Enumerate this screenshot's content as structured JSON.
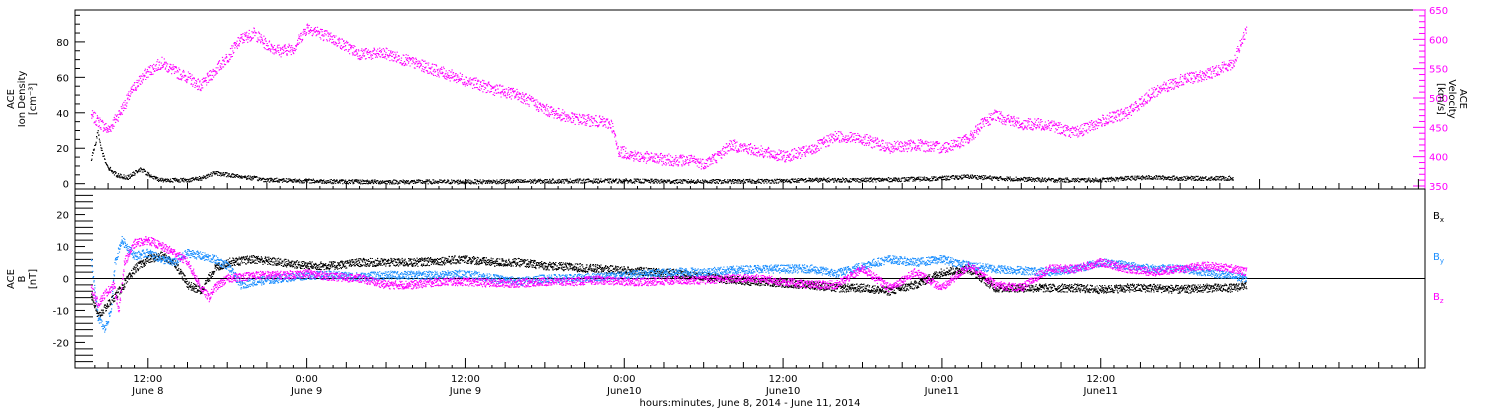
{
  "chart_data": [
    {
      "type": "scatter",
      "panel": "top",
      "ylabel_lines": [
        "ACE",
        "Ion Density",
        "[cm⁻³]"
      ],
      "y2label_lines": [
        "ACE",
        "Velocity",
        "[km/s]"
      ],
      "ylim": [
        -3,
        98
      ],
      "yticks": [
        0,
        20,
        40,
        60,
        80
      ],
      "y2lim": [
        350,
        650
      ],
      "y2ticks": [
        350,
        400,
        450,
        500,
        550,
        600,
        650
      ],
      "colors": {
        "density": "#000000",
        "velocity": "#ff00ff"
      },
      "series": [
        {
          "axis": "left",
          "color": "#000000",
          "points": [
            [
              -4.3,
              14
            ],
            [
              -4,
              22
            ],
            [
              -3.8,
              30
            ],
            [
              -3.5,
              18
            ],
            [
              -3.2,
              12
            ],
            [
              -3,
              9
            ],
            [
              -2.7,
              7
            ],
            [
              -2.4,
              5
            ],
            [
              -2,
              4
            ],
            [
              -1.5,
              3.5
            ],
            [
              -1,
              6
            ],
            [
              -0.7,
              8
            ],
            [
              -0.3,
              7
            ],
            [
              0,
              5
            ],
            [
              0.5,
              3
            ],
            [
              1,
              2
            ],
            [
              2,
              2
            ],
            [
              3,
              2
            ],
            [
              4,
              3
            ],
            [
              5,
              6
            ],
            [
              6,
              5
            ],
            [
              7,
              4
            ],
            [
              8,
              3
            ],
            [
              9,
              2
            ],
            [
              10,
              2
            ],
            [
              12,
              1.5
            ],
            [
              14,
              1.2
            ],
            [
              16,
              1
            ],
            [
              18,
              1
            ],
            [
              20,
              1
            ],
            [
              24,
              1
            ],
            [
              28,
              1.2
            ],
            [
              32,
              1.5
            ],
            [
              36,
              1.5
            ],
            [
              40,
              1.2
            ],
            [
              44,
              1.2
            ],
            [
              48,
              1.5
            ],
            [
              50,
              2
            ],
            [
              54,
              2
            ],
            [
              58,
              2.5
            ],
            [
              60,
              3
            ],
            [
              62,
              4
            ],
            [
              64,
              3
            ],
            [
              66,
              2.5
            ],
            [
              68,
              2
            ],
            [
              70,
              2
            ],
            [
              72,
              2
            ],
            [
              74,
              3
            ],
            [
              76,
              3.5
            ],
            [
              78,
              3
            ],
            [
              80,
              3
            ],
            [
              82,
              3
            ]
          ]
        },
        {
          "axis": "right",
          "color": "#ff00ff",
          "points": [
            [
              -4.3,
              470
            ],
            [
              -3,
              445
            ],
            [
              -2,
              480
            ],
            [
              -1,
              520
            ],
            [
              0,
              545
            ],
            [
              1,
              560
            ],
            [
              2,
              545
            ],
            [
              3,
              535
            ],
            [
              4,
              520
            ],
            [
              5,
              545
            ],
            [
              6,
              570
            ],
            [
              7,
              600
            ],
            [
              8,
              610
            ],
            [
              9,
              590
            ],
            [
              10,
              580
            ],
            [
              11,
              585
            ],
            [
              12,
              620
            ],
            [
              13,
              610
            ],
            [
              14,
              600
            ],
            [
              16,
              575
            ],
            [
              18,
              575
            ],
            [
              20,
              560
            ],
            [
              22,
              545
            ],
            [
              24,
              530
            ],
            [
              26,
              515
            ],
            [
              28,
              505
            ],
            [
              30,
              480
            ],
            [
              32,
              465
            ],
            [
              34,
              460
            ],
            [
              35,
              455
            ],
            [
              35.5,
              410
            ],
            [
              37,
              400
            ],
            [
              39,
              395
            ],
            [
              41,
              393
            ],
            [
              42,
              388
            ],
            [
              43,
              400
            ],
            [
              44,
              420
            ],
            [
              46,
              410
            ],
            [
              48,
              400
            ],
            [
              50,
              410
            ],
            [
              52,
              435
            ],
            [
              54,
              430
            ],
            [
              56,
              415
            ],
            [
              58,
              420
            ],
            [
              60,
              415
            ],
            [
              62,
              430
            ],
            [
              63,
              455
            ],
            [
              64,
              470
            ],
            [
              66,
              455
            ],
            [
              68,
              455
            ],
            [
              70,
              440
            ],
            [
              72,
              460
            ],
            [
              74,
              475
            ],
            [
              76,
              510
            ],
            [
              78,
              530
            ],
            [
              80,
              540
            ],
            [
              82,
              560
            ],
            [
              82.5,
              590
            ],
            [
              83,
              615
            ]
          ]
        }
      ]
    },
    {
      "type": "scatter",
      "panel": "bottom",
      "ylabel_lines": [
        "ACE",
        "B",
        "[nT]"
      ],
      "ylim": [
        -28,
        28
      ],
      "yticks": [
        -20,
        -10,
        0,
        10,
        20
      ],
      "legend_position": "right",
      "series": [
        {
          "name": "Bx",
          "label_main": "B",
          "label_sub": "x",
          "color": "#000000",
          "points": [
            [
              -4.3,
              -5
            ],
            [
              -3.8,
              -12
            ],
            [
              -3,
              -8
            ],
            [
              -2,
              -3
            ],
            [
              -1,
              3
            ],
            [
              0,
              6
            ],
            [
              1,
              7
            ],
            [
              2,
              5
            ],
            [
              3,
              -2
            ],
            [
              4,
              -4
            ],
            [
              5,
              3
            ],
            [
              6,
              5
            ],
            [
              8,
              6
            ],
            [
              10,
              5
            ],
            [
              12,
              4
            ],
            [
              14,
              4
            ],
            [
              16,
              5
            ],
            [
              18,
              5
            ],
            [
              20,
              5
            ],
            [
              22,
              5.5
            ],
            [
              24,
              6
            ],
            [
              26,
              5
            ],
            [
              28,
              5
            ],
            [
              30,
              4
            ],
            [
              32,
              3.5
            ],
            [
              34,
              3
            ],
            [
              36,
              2.5
            ],
            [
              38,
              2
            ],
            [
              40,
              1.5
            ],
            [
              42,
              0.5
            ],
            [
              44,
              -0.5
            ],
            [
              46,
              -1
            ],
            [
              48,
              -1.5
            ],
            [
              50,
              -2
            ],
            [
              52,
              -3
            ],
            [
              54,
              -3
            ],
            [
              56,
              -4
            ],
            [
              58,
              -2
            ],
            [
              60,
              2
            ],
            [
              62,
              3
            ],
            [
              64,
              -3
            ],
            [
              66,
              -3
            ],
            [
              68,
              -3
            ],
            [
              70,
              -3
            ],
            [
              72,
              -3.5
            ],
            [
              74,
              -3
            ],
            [
              76,
              -3
            ],
            [
              78,
              -3.5
            ],
            [
              80,
              -3
            ],
            [
              82,
              -3
            ],
            [
              83,
              -2
            ]
          ]
        },
        {
          "name": "By",
          "label_main": "B",
          "label_sub": "y",
          "color": "#1e90ff",
          "points": [
            [
              -4.3,
              5
            ],
            [
              -3.8,
              -12
            ],
            [
              -3.3,
              -16
            ],
            [
              -2.8,
              -10
            ],
            [
              -2.5,
              5
            ],
            [
              -2,
              12
            ],
            [
              -1,
              7
            ],
            [
              0,
              8
            ],
            [
              1,
              6
            ],
            [
              2,
              5
            ],
            [
              3,
              8
            ],
            [
              4,
              7
            ],
            [
              5,
              6
            ],
            [
              6,
              4
            ],
            [
              7,
              -2
            ],
            [
              8,
              -1
            ],
            [
              10,
              0
            ],
            [
              12,
              1
            ],
            [
              14,
              1
            ],
            [
              16,
              0.5
            ],
            [
              18,
              1
            ],
            [
              20,
              1
            ],
            [
              22,
              1
            ],
            [
              24,
              1.5
            ],
            [
              26,
              0
            ],
            [
              28,
              -1
            ],
            [
              30,
              0
            ],
            [
              32,
              0
            ],
            [
              34,
              0.5
            ],
            [
              36,
              1
            ],
            [
              38,
              1.5
            ],
            [
              40,
              2
            ],
            [
              42,
              2
            ],
            [
              44,
              2.5
            ],
            [
              46,
              3
            ],
            [
              48,
              3
            ],
            [
              50,
              3
            ],
            [
              52,
              1.5
            ],
            [
              54,
              4
            ],
            [
              56,
              6
            ],
            [
              58,
              5
            ],
            [
              60,
              6
            ],
            [
              62,
              4
            ],
            [
              64,
              3
            ],
            [
              66,
              2.5
            ],
            [
              68,
              2
            ],
            [
              70,
              3
            ],
            [
              72,
              5
            ],
            [
              74,
              4
            ],
            [
              76,
              3
            ],
            [
              78,
              3
            ],
            [
              80,
              2
            ],
            [
              82,
              0.5
            ],
            [
              83,
              0
            ]
          ]
        },
        {
          "name": "Bz",
          "label_main": "B",
          "label_sub": "z",
          "color": "#ff00ff",
          "points": [
            [
              -4.3,
              -3
            ],
            [
              -3.8,
              -8
            ],
            [
              -3.3,
              -5
            ],
            [
              -2.6,
              -2
            ],
            [
              -2.2,
              -10
            ],
            [
              -1.8,
              5
            ],
            [
              -1,
              11
            ],
            [
              0,
              12
            ],
            [
              1,
              10
            ],
            [
              2,
              8
            ],
            [
              3,
              5
            ],
            [
              4,
              -3
            ],
            [
              4.6,
              -6
            ],
            [
              5,
              -3
            ],
            [
              6,
              0
            ],
            [
              8,
              1
            ],
            [
              10,
              1
            ],
            [
              12,
              1.5
            ],
            [
              14,
              0.5
            ],
            [
              16,
              0
            ],
            [
              18,
              -2
            ],
            [
              20,
              -2
            ],
            [
              22,
              -1
            ],
            [
              24,
              -1
            ],
            [
              26,
              -1.5
            ],
            [
              28,
              -1.5
            ],
            [
              30,
              -1
            ],
            [
              32,
              -1
            ],
            [
              34,
              -0.5
            ],
            [
              36,
              -1
            ],
            [
              38,
              -1
            ],
            [
              40,
              -0.5
            ],
            [
              42,
              -0.5
            ],
            [
              44,
              0
            ],
            [
              46,
              0
            ],
            [
              48,
              -1
            ],
            [
              50,
              -2
            ],
            [
              52,
              -2
            ],
            [
              54,
              3
            ],
            [
              56,
              -3
            ],
            [
              58,
              2
            ],
            [
              60,
              -3
            ],
            [
              62,
              4
            ],
            [
              64,
              -2
            ],
            [
              66,
              -3
            ],
            [
              68,
              3
            ],
            [
              70,
              3
            ],
            [
              72,
              5
            ],
            [
              74,
              3
            ],
            [
              76,
              2
            ],
            [
              78,
              3
            ],
            [
              80,
              4
            ],
            [
              82,
              3
            ],
            [
              83,
              2
            ]
          ]
        }
      ]
    }
  ],
  "x_axis": {
    "title": "hours:minutes, June  8, 2014 - June 11, 2014",
    "xlim": [
      -5.5,
      96.5
    ],
    "ticks": [
      {
        "x": 0,
        "time": "12:00",
        "date": "June 8"
      },
      {
        "x": 12,
        "time": "0:00",
        "date": "June 9"
      },
      {
        "x": 24,
        "time": "12:00",
        "date": "June 9"
      },
      {
        "x": 36,
        "time": "0:00",
        "date": "June10"
      },
      {
        "x": 48,
        "time": "12:00",
        "date": "June10"
      },
      {
        "x": 60,
        "time": "0:00",
        "date": "June11"
      },
      {
        "x": 72,
        "time": "12:00",
        "date": "June11"
      }
    ]
  }
}
